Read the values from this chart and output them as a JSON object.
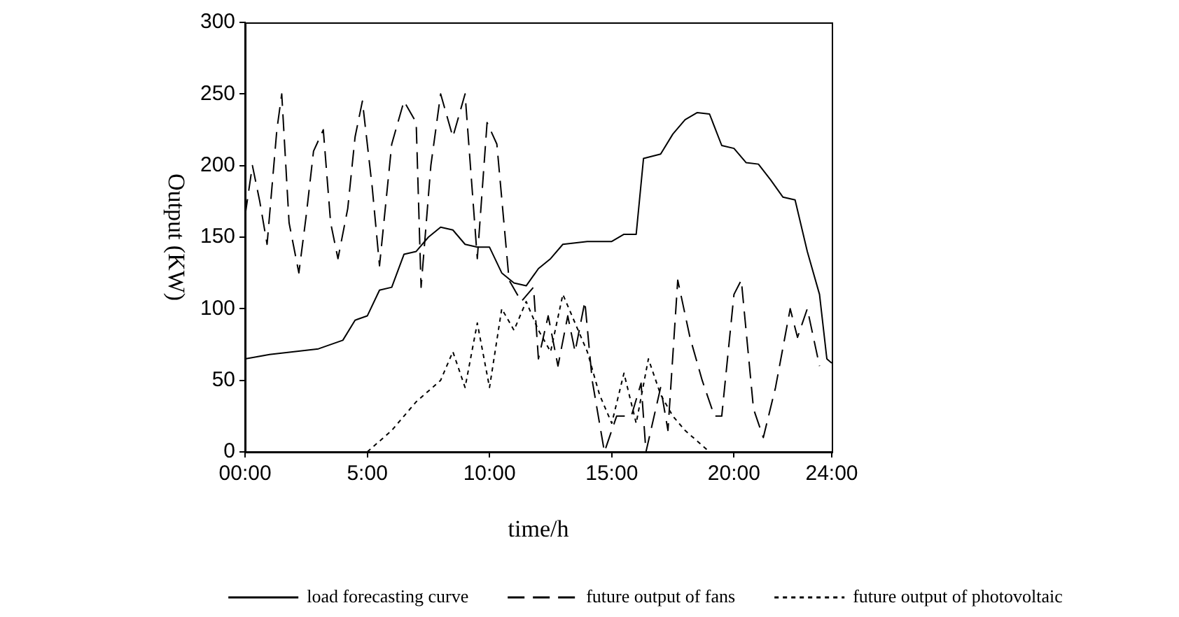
{
  "chart_data": {
    "type": "line",
    "xlabel": "time/h",
    "ylabel": "Output (KW)",
    "xlim": [
      0,
      24
    ],
    "xticks": [
      {
        "value": 0,
        "label": "00:00"
      },
      {
        "value": 5,
        "label": "5:00"
      },
      {
        "value": 10,
        "label": "10:00"
      },
      {
        "value": 15,
        "label": "15:00"
      },
      {
        "value": 20,
        "label": "20:00"
      },
      {
        "value": 24,
        "label": "24:00"
      }
    ],
    "ylim": [
      0,
      300
    ],
    "yticks": [
      0,
      50,
      100,
      150,
      200,
      250,
      300
    ],
    "grid": false,
    "legend": "bottom",
    "marker": "none",
    "series": [
      {
        "name": "load forecasting curve",
        "color": "#000000",
        "line_style": "solid",
        "x": [
          0,
          1,
          2,
          3,
          4,
          4.5,
          5,
          5.5,
          6,
          6.5,
          7,
          7.5,
          8,
          8.5,
          9,
          9.5,
          10,
          10.5,
          11,
          11.5,
          12,
          12.5,
          13,
          14,
          15,
          15.5,
          16,
          16.3,
          17,
          17.5,
          18,
          18.5,
          19,
          19.5,
          20,
          20.5,
          21,
          21.5,
          22,
          22.5,
          23,
          23.5,
          23.8,
          24
        ],
        "values": [
          65,
          68,
          70,
          72,
          78,
          92,
          95,
          113,
          115,
          138,
          140,
          150,
          157,
          155,
          145,
          143,
          143,
          125,
          118,
          116,
          128,
          135,
          145,
          147,
          147,
          152,
          152,
          205,
          208,
          222,
          232,
          237,
          236,
          214,
          212,
          202,
          201,
          190,
          178,
          176,
          140,
          110,
          65,
          62
        ]
      },
      {
        "name": "future output of fans",
        "color": "#000000",
        "line_style": "dashed",
        "x": [
          0,
          0.3,
          0.6,
          0.9,
          1.3,
          1.5,
          1.8,
          2.2,
          2.5,
          2.8,
          3.2,
          3.5,
          3.8,
          4.2,
          4.5,
          4.8,
          5.2,
          5.5,
          6,
          6.5,
          7,
          7.2,
          7.6,
          8,
          8.5,
          9,
          9.5,
          9.9,
          10.3,
          10.8,
          11.3,
          11.8,
          12,
          12.4,
          12.8,
          13.2,
          13.5,
          13.9,
          14.2,
          14.7,
          15.2,
          15.8,
          16.2,
          16.4,
          17,
          17.3,
          17.7,
          18.2,
          18.7,
          19.2,
          19.5,
          20,
          20.3,
          20.8,
          21.2,
          21.7,
          22.3,
          22.6,
          23,
          23.5
        ],
        "values": [
          165,
          200,
          175,
          145,
          225,
          250,
          160,
          125,
          165,
          210,
          225,
          160,
          135,
          170,
          220,
          245,
          185,
          130,
          215,
          245,
          230,
          115,
          200,
          250,
          220,
          250,
          135,
          230,
          215,
          120,
          105,
          115,
          65,
          95,
          60,
          95,
          70,
          105,
          50,
          0,
          25,
          25,
          48,
          0,
          45,
          15,
          120,
          80,
          50,
          25,
          25,
          110,
          120,
          30,
          10,
          45,
          100,
          80,
          100,
          60
        ]
      },
      {
        "name": "future output of photovoltaic",
        "color": "#000000",
        "line_style": "dotted",
        "x": [
          5,
          6,
          7,
          8,
          8.5,
          9,
          9.5,
          10,
          10.5,
          11,
          11.5,
          12,
          12.5,
          13,
          13.5,
          14,
          14.5,
          15,
          15.5,
          16,
          16.5,
          17,
          17.5,
          18,
          19
        ],
        "values": [
          0,
          15,
          35,
          50,
          70,
          45,
          90,
          45,
          100,
          85,
          105,
          85,
          70,
          110,
          90,
          70,
          40,
          20,
          55,
          20,
          65,
          40,
          25,
          15,
          0
        ]
      }
    ]
  }
}
